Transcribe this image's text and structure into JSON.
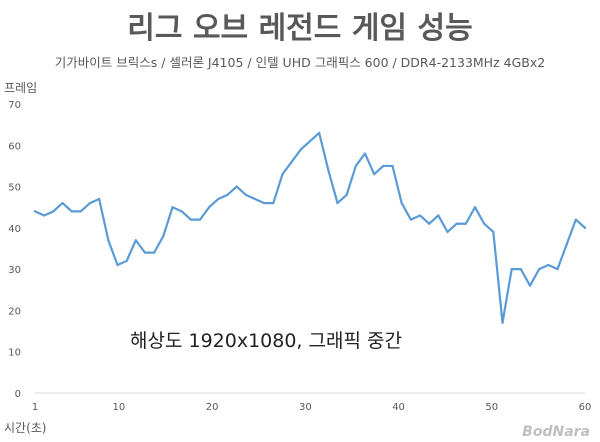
{
  "chart_data": {
    "type": "line",
    "title": "리그 오브 레전드 게임 성능",
    "subtitle": "기가바이트 브릭스s / 셀러론 J4105 / 인텔 UHD 그래픽스 600 / DDR4-2133MHz 4GBx2",
    "ylabel": "프레임",
    "xlabel": "시간(초)",
    "annotation": "해상도 1920x1080, 그래픽 중간",
    "watermark": "BodNara",
    "xlim": [
      1,
      60
    ],
    "ylim": [
      0,
      70
    ],
    "x_ticks": [
      1,
      10,
      20,
      30,
      40,
      50,
      60
    ],
    "y_ticks": [
      0,
      10,
      20,
      30,
      40,
      50,
      60,
      70
    ],
    "grid": false,
    "line_color": "#5b9bd5",
    "series": [
      {
        "values": [
          44,
          43,
          44,
          46,
          44,
          44,
          46,
          47,
          37,
          31,
          32,
          37,
          34,
          34,
          38,
          45,
          44,
          42,
          42,
          45,
          47,
          48,
          50,
          48,
          47,
          46,
          46,
          53,
          56,
          59,
          61,
          63,
          54,
          46,
          48,
          55,
          58,
          53,
          55,
          55,
          46,
          42,
          43,
          41,
          43,
          39,
          41,
          41,
          45,
          41,
          39,
          17,
          30,
          30,
          26,
          30,
          31,
          30,
          36,
          42,
          40
        ]
      }
    ]
  }
}
